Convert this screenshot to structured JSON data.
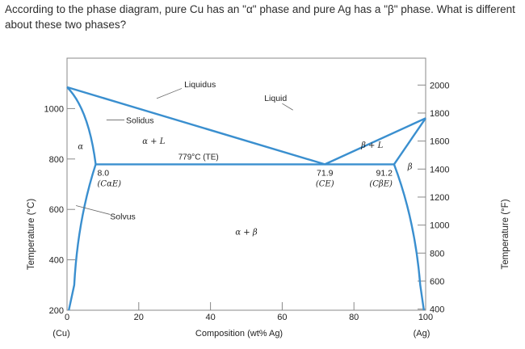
{
  "question": "According to the phase diagram, pure Cu has an \"α\" phase and pure Ag has a \"β\" phase.  What is different about these two phases?",
  "chart_data": {
    "type": "phase-diagram",
    "system": "Cu-Ag",
    "xlabel": "Composition (wt% Ag)",
    "ylabel_left": "Temperature (°C)",
    "ylabel_right": "Temperature (°F)",
    "x_ticks": [
      "0",
      "20",
      "40",
      "60",
      "80",
      "100"
    ],
    "x_end_labels": {
      "left": "(Cu)",
      "right": "(Ag)"
    },
    "y_ticks_c": [
      "200",
      "400",
      "600",
      "800",
      "1000"
    ],
    "y_ticks_f": [
      "400",
      "600",
      "800",
      "1000",
      "1200",
      "1400",
      "1600",
      "1800",
      "2000"
    ],
    "xlim": [
      0,
      100
    ],
    "ylim_c": [
      200,
      1200
    ],
    "melting_points_c": {
      "Cu": 1085,
      "Ag": 962
    },
    "eutectic": {
      "temperature_c": 779,
      "composition_ag": 71.9
    },
    "max_solubility": {
      "alpha_ag": 8.0,
      "beta_ag": 91.2
    },
    "lines": {
      "liquidus": [
        [
          0,
          1085
        ],
        [
          71.9,
          779
        ],
        [
          100,
          962
        ]
      ],
      "solidus_alpha": [
        [
          0,
          1085
        ],
        [
          8.0,
          779
        ]
      ],
      "solidus_beta": [
        [
          100,
          962
        ],
        [
          91.2,
          779
        ]
      ],
      "eutectic_isotherm": [
        [
          8.0,
          779
        ],
        [
          91.2,
          779
        ]
      ],
      "solvus_alpha": [
        [
          8.0,
          779
        ],
        [
          2.0,
          300
        ],
        [
          0.5,
          200
        ]
      ],
      "solvus_beta": [
        [
          91.2,
          779
        ],
        [
          98.5,
          300
        ],
        [
          99.5,
          200
        ]
      ]
    },
    "labels": {
      "liquidus": "Liquidus",
      "solidus": "Solidus",
      "solvus": "Solvus",
      "liquid": "Liquid",
      "alpha": "α",
      "beta": "β",
      "alpha_L": "α + L",
      "beta_L": "β + L",
      "alpha_beta": "α + β",
      "eutectic_temp": "779°C (TE)",
      "comp_alpha": "8.0",
      "comp_alpha_sym": "(CαE)",
      "comp_eutectic": "71.9",
      "comp_eutectic_sym": "(CE)",
      "comp_beta": "91.2",
      "comp_beta_sym": "(CβE)"
    },
    "colors": {
      "line": "#3a8fcf",
      "axis": "#888888"
    }
  }
}
